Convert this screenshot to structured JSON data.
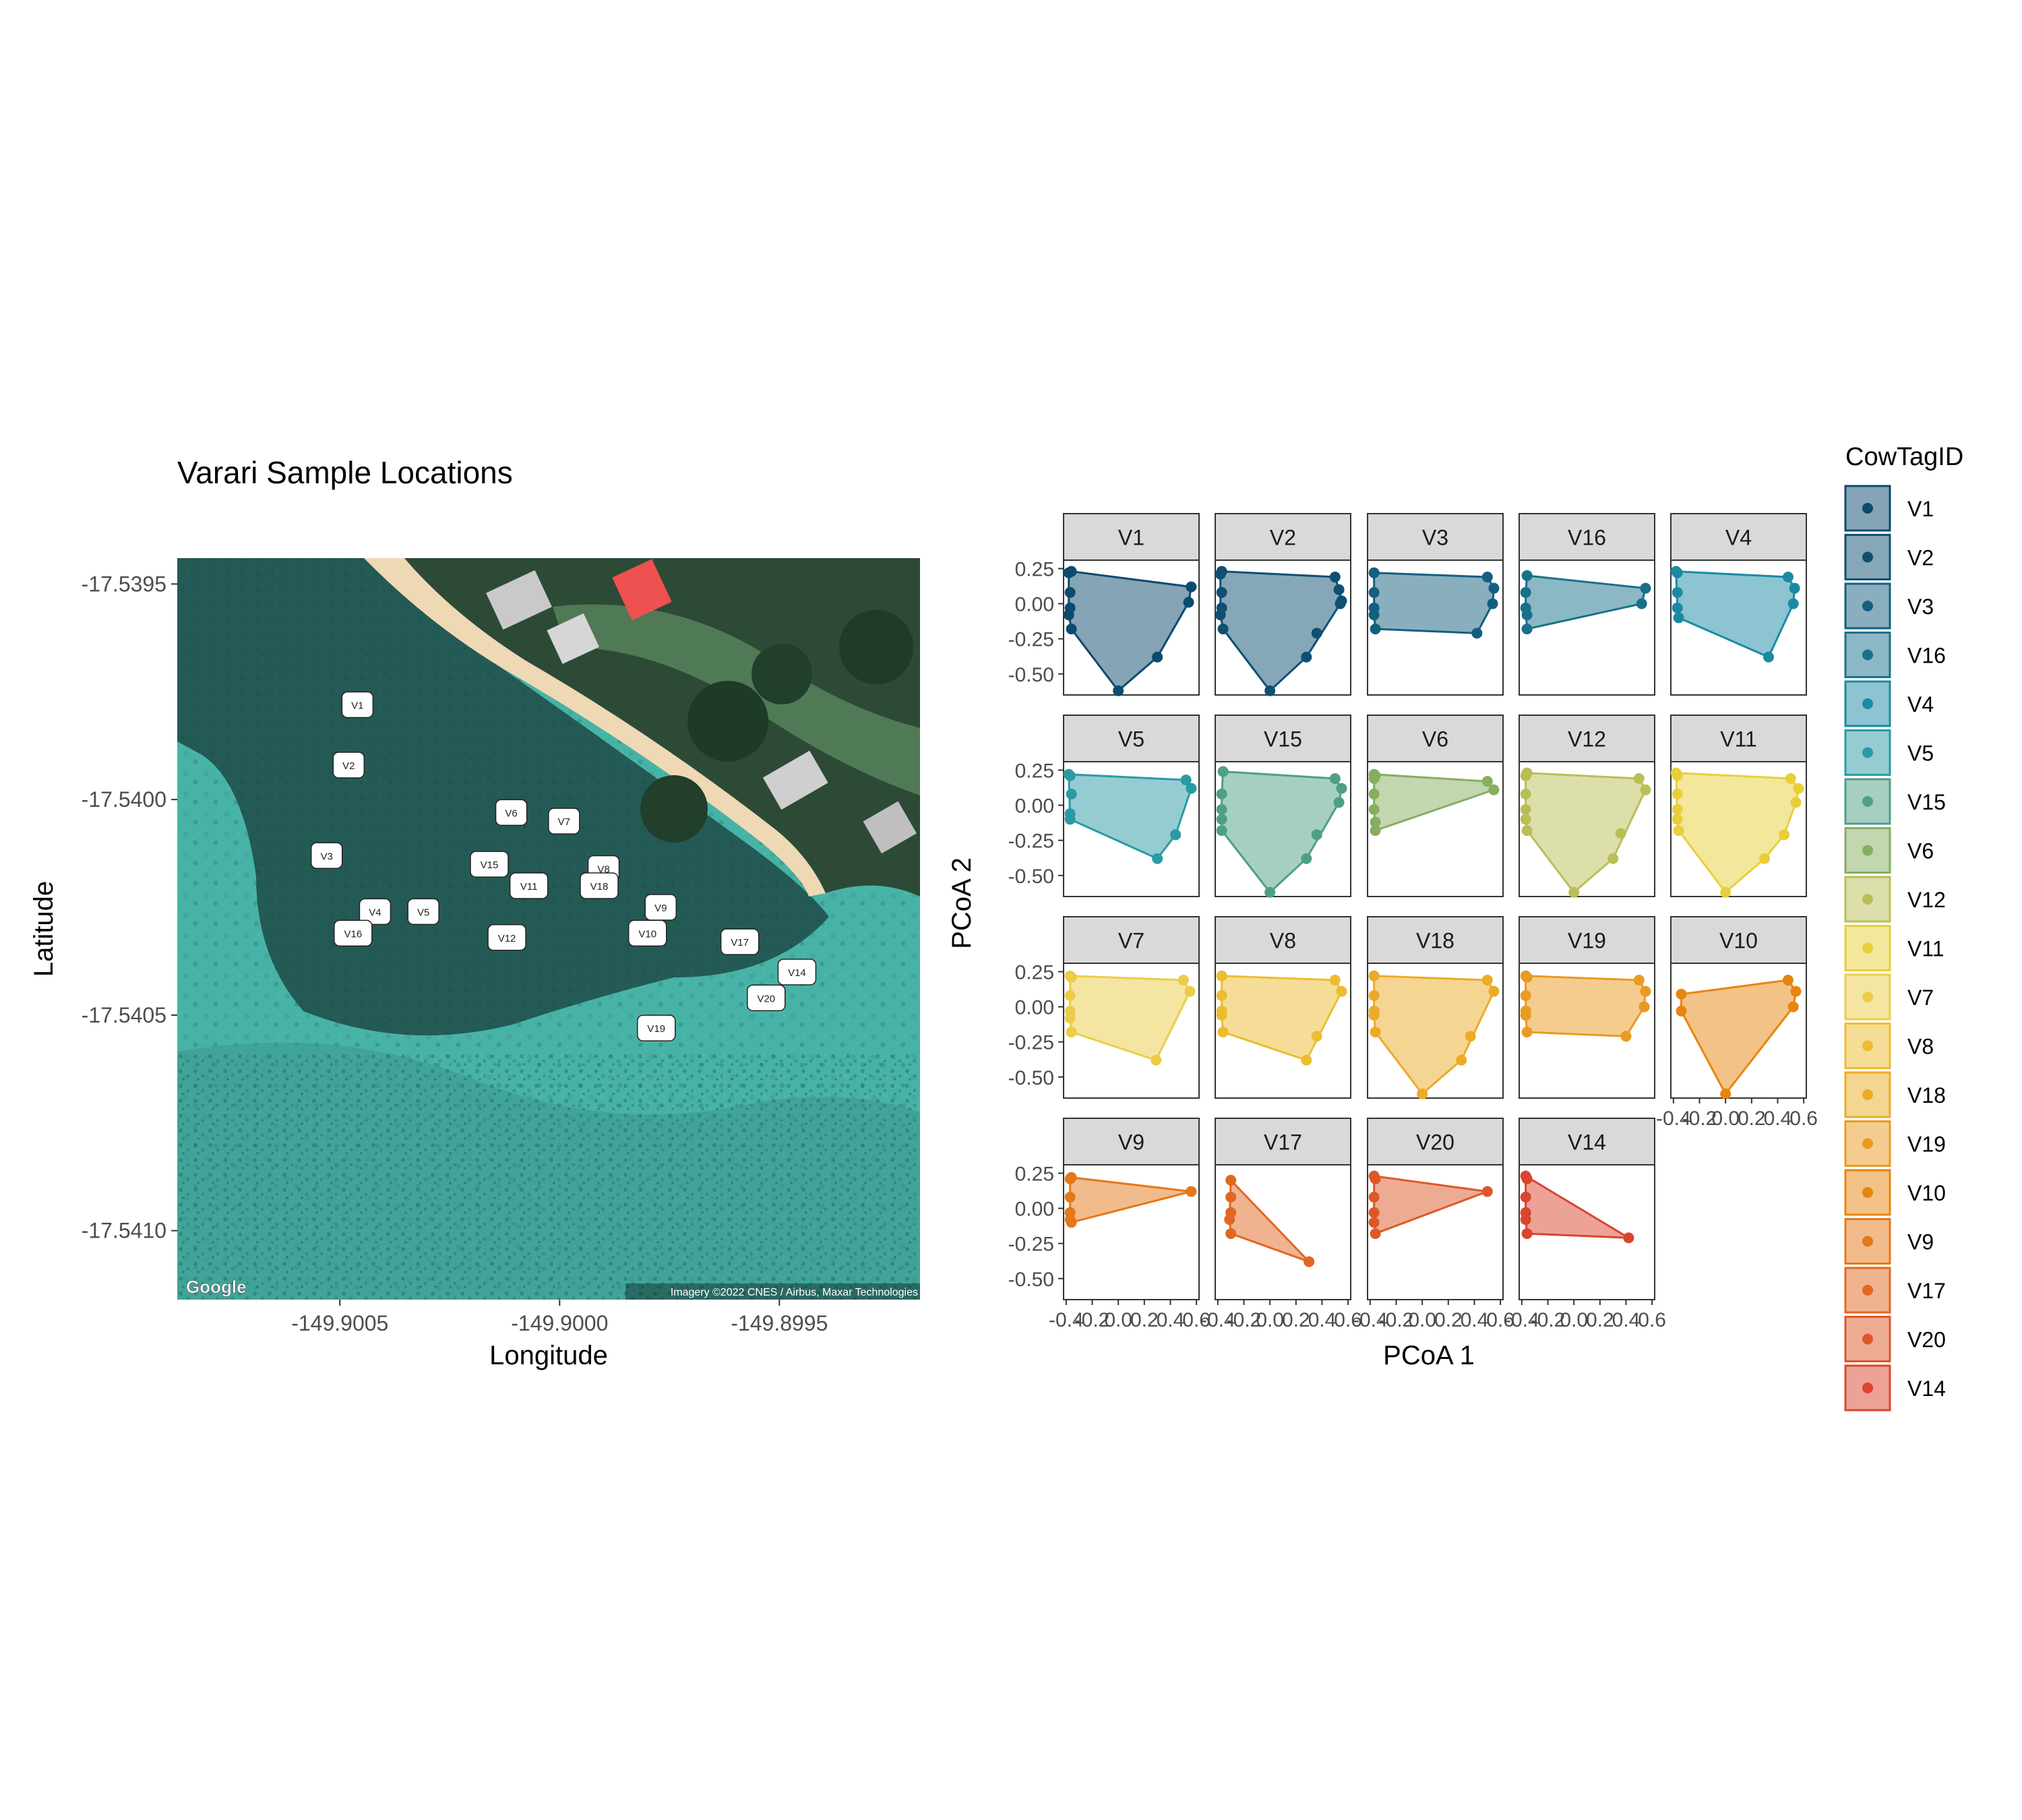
{
  "map": {
    "title": "Varari Sample Locations",
    "xlabel": "Longitude",
    "ylabel": "Latitude",
    "x_ticks": [
      "-149.9005",
      "-149.9000",
      "-149.8995"
    ],
    "x_tick_values": [
      -149.9005,
      -149.9,
      -149.8995
    ],
    "y_ticks": [
      "-17.5395",
      "-17.5400",
      "-17.5405",
      "-17.5410"
    ],
    "y_tick_values": [
      -17.5395,
      -17.54,
      -17.5405,
      -17.541
    ],
    "xlim": [
      -149.90087,
      -149.89918
    ],
    "ylim": [
      -17.54116,
      -17.53944
    ],
    "google_logo": "Google",
    "attribution": "Imagery ©2022 CNES / Airbus, Maxar Technologies",
    "points": [
      {
        "id": "V1",
        "lon": -149.90046,
        "lat": -17.53978
      },
      {
        "id": "V2",
        "lon": -149.90048,
        "lat": -17.53992
      },
      {
        "id": "V3",
        "lon": -149.90053,
        "lat": -17.54013
      },
      {
        "id": "V4",
        "lon": -149.90042,
        "lat": -17.54026
      },
      {
        "id": "V16",
        "lon": -149.90047,
        "lat": -17.54031
      },
      {
        "id": "V5",
        "lon": -149.90031,
        "lat": -17.54026
      },
      {
        "id": "V6",
        "lon": -149.90011,
        "lat": -17.54003
      },
      {
        "id": "V7",
        "lon": -149.89999,
        "lat": -17.54005
      },
      {
        "id": "V15",
        "lon": -149.90016,
        "lat": -17.54015
      },
      {
        "id": "V11",
        "lon": -149.90007,
        "lat": -17.5402
      },
      {
        "id": "V8",
        "lon": -149.8999,
        "lat": -17.54016
      },
      {
        "id": "V18",
        "lon": -149.89991,
        "lat": -17.5402
      },
      {
        "id": "V12",
        "lon": -149.90012,
        "lat": -17.54032
      },
      {
        "id": "V9",
        "lon": -149.89977,
        "lat": -17.54025
      },
      {
        "id": "V10",
        "lon": -149.8998,
        "lat": -17.54031
      },
      {
        "id": "V17",
        "lon": -149.89959,
        "lat": -17.54033
      },
      {
        "id": "V14",
        "lon": -149.89946,
        "lat": -17.5404
      },
      {
        "id": "V20",
        "lon": -149.89953,
        "lat": -17.54046
      },
      {
        "id": "V19",
        "lon": -149.89978,
        "lat": -17.54053
      }
    ]
  },
  "chart_data": {
    "type": "scatter",
    "subtype": "faceted-convex-hull",
    "xlabel": "PCoA 1",
    "ylabel": "PCoA 2",
    "xlim": [
      -0.42,
      0.62
    ],
    "ylim": [
      -0.65,
      0.31
    ],
    "x_ticks": [
      -0.4,
      -0.2,
      0.0,
      0.2,
      0.4,
      0.6
    ],
    "x_tick_labels": [
      "-0.4",
      "-0.2",
      "0.0",
      "0.2",
      "0.4",
      "0.6"
    ],
    "y_ticks": [
      0.25,
      0.0,
      -0.25,
      -0.5
    ],
    "y_tick_labels": [
      "0.25",
      "0.00",
      "-0.25",
      "-0.50"
    ],
    "grid": false,
    "legend": {
      "title": "CowTagID",
      "placement": "right",
      "entries": [
        "V1",
        "V2",
        "V3",
        "V16",
        "V4",
        "V5",
        "V15",
        "V6",
        "V12",
        "V11",
        "V7",
        "V8",
        "V18",
        "V19",
        "V10",
        "V9",
        "V17",
        "V20",
        "V14"
      ]
    },
    "series": [
      {
        "name": "V1",
        "color": "#0c4a6e",
        "points": [
          [
            -0.38,
            0.22
          ],
          [
            -0.36,
            0.23
          ],
          [
            -0.37,
            0.08
          ],
          [
            -0.37,
            -0.03
          ],
          [
            -0.38,
            -0.08
          ],
          [
            -0.36,
            -0.18
          ],
          [
            0.0,
            -0.62
          ],
          [
            0.3,
            -0.38
          ],
          [
            0.54,
            0.01
          ],
          [
            0.56,
            0.12
          ]
        ]
      },
      {
        "name": "V2",
        "color": "#0e4f72",
        "points": [
          [
            -0.38,
            0.21
          ],
          [
            -0.37,
            0.23
          ],
          [
            -0.37,
            0.08
          ],
          [
            -0.37,
            -0.03
          ],
          [
            -0.38,
            -0.08
          ],
          [
            -0.36,
            -0.18
          ],
          [
            0.0,
            -0.62
          ],
          [
            0.28,
            -0.38
          ],
          [
            0.36,
            -0.21
          ],
          [
            0.5,
            0.19
          ],
          [
            0.53,
            0.1
          ],
          [
            0.54,
            0.0
          ],
          [
            0.55,
            0.02
          ]
        ]
      },
      {
        "name": "V3",
        "color": "#135f80",
        "points": [
          [
            -0.37,
            0.22
          ],
          [
            -0.37,
            0.08
          ],
          [
            -0.37,
            -0.03
          ],
          [
            -0.37,
            -0.08
          ],
          [
            -0.36,
            -0.18
          ],
          [
            0.42,
            -0.21
          ],
          [
            0.5,
            0.19
          ],
          [
            0.55,
            0.11
          ],
          [
            0.54,
            0.0
          ]
        ]
      },
      {
        "name": "V16",
        "color": "#177189",
        "points": [
          [
            -0.36,
            0.2
          ],
          [
            -0.37,
            0.08
          ],
          [
            -0.37,
            -0.03
          ],
          [
            -0.36,
            -0.08
          ],
          [
            -0.36,
            -0.18
          ],
          [
            0.52,
            0.0
          ],
          [
            0.55,
            0.11
          ]
        ]
      },
      {
        "name": "V4",
        "color": "#1a8aa3",
        "points": [
          [
            -0.38,
            0.23
          ],
          [
            -0.37,
            0.22
          ],
          [
            -0.37,
            0.08
          ],
          [
            -0.37,
            -0.03
          ],
          [
            -0.36,
            -0.1
          ],
          [
            0.33,
            -0.38
          ],
          [
            0.48,
            0.19
          ],
          [
            0.53,
            0.11
          ],
          [
            0.52,
            0.0
          ]
        ]
      },
      {
        "name": "V5",
        "color": "#2a9aa5",
        "points": [
          [
            -0.37,
            0.21
          ],
          [
            -0.38,
            0.22
          ],
          [
            -0.36,
            0.08
          ],
          [
            -0.37,
            -0.06
          ],
          [
            -0.37,
            -0.1
          ],
          [
            0.3,
            -0.38
          ],
          [
            0.44,
            -0.21
          ],
          [
            0.52,
            0.18
          ],
          [
            0.56,
            0.12
          ]
        ]
      },
      {
        "name": "V15",
        "color": "#4e9f86",
        "points": [
          [
            -0.36,
            0.24
          ],
          [
            -0.37,
            0.08
          ],
          [
            -0.37,
            -0.03
          ],
          [
            -0.37,
            -0.1
          ],
          [
            -0.37,
            -0.18
          ],
          [
            0.0,
            -0.62
          ],
          [
            0.28,
            -0.38
          ],
          [
            0.36,
            -0.21
          ],
          [
            0.5,
            0.19
          ],
          [
            0.55,
            0.12
          ],
          [
            0.53,
            0.02
          ]
        ]
      },
      {
        "name": "V6",
        "color": "#86ad60",
        "points": [
          [
            -0.37,
            0.22
          ],
          [
            -0.36,
            0.21
          ],
          [
            -0.37,
            0.19
          ],
          [
            -0.37,
            0.08
          ],
          [
            -0.37,
            -0.03
          ],
          [
            -0.36,
            -0.12
          ],
          [
            -0.36,
            -0.18
          ],
          [
            0.5,
            0.17
          ],
          [
            0.55,
            0.11
          ]
        ]
      },
      {
        "name": "V12",
        "color": "#b9bf55",
        "points": [
          [
            -0.37,
            0.21
          ],
          [
            -0.36,
            0.23
          ],
          [
            -0.37,
            0.08
          ],
          [
            -0.37,
            -0.03
          ],
          [
            -0.37,
            -0.1
          ],
          [
            -0.36,
            -0.18
          ],
          [
            0.0,
            -0.62
          ],
          [
            0.3,
            -0.38
          ],
          [
            0.36,
            -0.2
          ],
          [
            0.5,
            0.19
          ],
          [
            0.55,
            0.11
          ]
        ]
      },
      {
        "name": "V11",
        "color": "#e8cf3a",
        "points": [
          [
            -0.38,
            0.23
          ],
          [
            -0.37,
            0.21
          ],
          [
            -0.37,
            0.08
          ],
          [
            -0.37,
            -0.03
          ],
          [
            -0.37,
            -0.1
          ],
          [
            -0.36,
            -0.18
          ],
          [
            0.0,
            -0.62
          ],
          [
            0.3,
            -0.38
          ],
          [
            0.45,
            -0.21
          ],
          [
            0.5,
            0.19
          ],
          [
            0.56,
            0.12
          ],
          [
            0.54,
            0.02
          ]
        ]
      },
      {
        "name": "V7",
        "color": "#eccc47",
        "points": [
          [
            -0.37,
            0.22
          ],
          [
            -0.36,
            0.21
          ],
          [
            -0.37,
            0.08
          ],
          [
            -0.37,
            -0.03
          ],
          [
            -0.37,
            -0.08
          ],
          [
            -0.36,
            -0.18
          ],
          [
            0.29,
            -0.38
          ],
          [
            0.5,
            0.19
          ],
          [
            0.55,
            0.11
          ]
        ]
      },
      {
        "name": "V8",
        "color": "#edbc30",
        "points": [
          [
            -0.37,
            0.22
          ],
          [
            -0.37,
            0.08
          ],
          [
            -0.37,
            -0.03
          ],
          [
            -0.37,
            -0.06
          ],
          [
            -0.36,
            -0.18
          ],
          [
            0.28,
            -0.38
          ],
          [
            0.36,
            -0.21
          ],
          [
            0.5,
            0.19
          ],
          [
            0.55,
            0.11
          ]
        ]
      },
      {
        "name": "V18",
        "color": "#ecab26",
        "points": [
          [
            -0.37,
            0.22
          ],
          [
            -0.37,
            0.08
          ],
          [
            -0.37,
            -0.03
          ],
          [
            -0.37,
            -0.06
          ],
          [
            -0.36,
            -0.18
          ],
          [
            0.0,
            -0.62
          ],
          [
            0.3,
            -0.38
          ],
          [
            0.37,
            -0.21
          ],
          [
            0.5,
            0.19
          ],
          [
            0.55,
            0.11
          ]
        ]
      },
      {
        "name": "V19",
        "color": "#e99a20",
        "points": [
          [
            -0.37,
            0.22
          ],
          [
            -0.36,
            0.21
          ],
          [
            -0.37,
            0.08
          ],
          [
            -0.37,
            -0.03
          ],
          [
            -0.37,
            -0.06
          ],
          [
            -0.36,
            -0.18
          ],
          [
            0.4,
            -0.21
          ],
          [
            0.5,
            0.19
          ],
          [
            0.55,
            0.11
          ],
          [
            0.54,
            0.0
          ]
        ]
      },
      {
        "name": "V10",
        "color": "#e8850e",
        "points": [
          [
            -0.34,
            0.09
          ],
          [
            -0.34,
            -0.03
          ],
          [
            0.0,
            -0.62
          ],
          [
            0.48,
            0.19
          ],
          [
            0.54,
            0.11
          ],
          [
            0.52,
            0.0
          ]
        ]
      },
      {
        "name": "V9",
        "color": "#e4781a",
        "points": [
          [
            -0.37,
            0.21
          ],
          [
            -0.36,
            0.22
          ],
          [
            -0.37,
            0.08
          ],
          [
            -0.37,
            -0.03
          ],
          [
            -0.37,
            -0.08
          ],
          [
            -0.36,
            -0.1
          ],
          [
            0.56,
            0.12
          ]
        ]
      },
      {
        "name": "V17",
        "color": "#e26722",
        "points": [
          [
            -0.3,
            0.2
          ],
          [
            -0.3,
            0.08
          ],
          [
            -0.3,
            -0.03
          ],
          [
            -0.31,
            -0.08
          ],
          [
            -0.3,
            -0.18
          ],
          [
            0.3,
            -0.38
          ]
        ]
      },
      {
        "name": "V20",
        "color": "#de5728",
        "points": [
          [
            -0.37,
            0.23
          ],
          [
            -0.36,
            0.21
          ],
          [
            -0.37,
            0.08
          ],
          [
            -0.37,
            -0.03
          ],
          [
            -0.37,
            -0.1
          ],
          [
            -0.36,
            -0.18
          ],
          [
            0.5,
            0.12
          ]
        ]
      },
      {
        "name": "V14",
        "color": "#d9452f",
        "points": [
          [
            -0.37,
            0.23
          ],
          [
            -0.36,
            0.21
          ],
          [
            -0.37,
            0.08
          ],
          [
            -0.37,
            -0.03
          ],
          [
            -0.37,
            -0.08
          ],
          [
            -0.36,
            -0.18
          ],
          [
            0.42,
            -0.21
          ]
        ]
      }
    ]
  }
}
